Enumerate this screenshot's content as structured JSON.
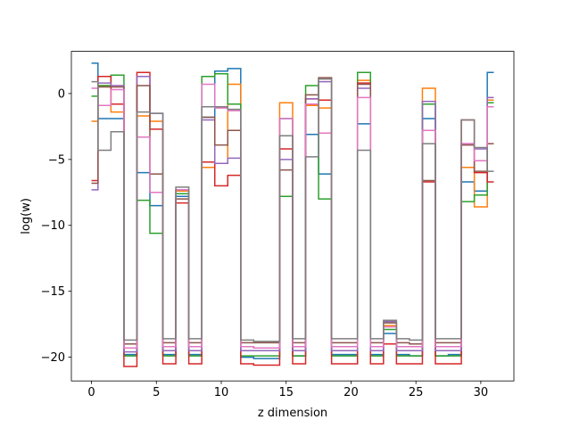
{
  "chart_data": {
    "type": "line",
    "drawstyle": "steps-mid",
    "title": "",
    "xlabel": "z dimension",
    "ylabel": "log(w)",
    "xlim": [
      -1.55,
      32.55
    ],
    "ylim": [
      -21.8,
      3.2
    ],
    "xticks": [
      0,
      5,
      10,
      15,
      20,
      25,
      30
    ],
    "yticks": [
      0,
      -5,
      -10,
      -15,
      -20
    ],
    "grid": false,
    "legend": "none",
    "x": [
      0,
      1,
      2,
      3,
      4,
      5,
      6,
      7,
      8,
      9,
      10,
      11,
      12,
      13,
      14,
      15,
      16,
      17,
      18,
      19,
      20,
      21,
      22,
      23,
      24,
      25,
      26,
      27,
      28,
      29,
      30,
      31
    ],
    "series": [
      {
        "color": "#1f77b4",
        "values": [
          2.3,
          -1.9,
          -1.9,
          -19.8,
          -6.0,
          -8.5,
          -19.8,
          -7.8,
          -19.8,
          -1.8,
          1.7,
          1.9,
          -20.0,
          -20.1,
          -20.1,
          -1.9,
          -19.9,
          -3.1,
          -6.1,
          -19.8,
          -19.8,
          -2.3,
          -19.8,
          -18.2,
          -19.8,
          -19.9,
          -1.9,
          -19.9,
          -19.8,
          -6.7,
          -7.4,
          1.6
        ]
      },
      {
        "color": "#ff7f0e",
        "values": [
          -2.1,
          0.6,
          -1.4,
          -19.3,
          -1.7,
          -2.1,
          -19.2,
          -7.4,
          -19.2,
          -5.6,
          -5.3,
          0.7,
          -19.2,
          -19.3,
          -19.3,
          -0.7,
          -19.2,
          -0.9,
          -1.1,
          -19.2,
          -19.2,
          1.0,
          -19.2,
          -17.6,
          -19.2,
          -19.2,
          0.4,
          -19.2,
          -19.2,
          -5.6,
          -8.6,
          -0.5
        ]
      },
      {
        "color": "#2ca02c",
        "values": [
          -0.2,
          0.6,
          1.4,
          -19.9,
          -8.1,
          -10.6,
          -19.9,
          -7.6,
          -19.9,
          1.3,
          1.5,
          -0.8,
          -19.9,
          -19.9,
          -19.9,
          -7.8,
          -19.9,
          0.6,
          -8.0,
          -19.9,
          -19.9,
          1.6,
          -19.9,
          -17.9,
          -19.9,
          -19.9,
          -0.8,
          -19.9,
          -19.9,
          -8.2,
          -7.7,
          -0.7
        ]
      },
      {
        "color": "#d62728",
        "values": [
          -6.6,
          1.3,
          -0.8,
          -20.7,
          1.6,
          -2.7,
          -20.5,
          -8.3,
          -20.5,
          -5.2,
          -7.0,
          -6.2,
          -20.5,
          -20.6,
          -20.6,
          -4.2,
          -20.5,
          -0.4,
          -0.5,
          -20.5,
          -20.5,
          0.8,
          -20.5,
          -19.0,
          -20.5,
          -20.5,
          -6.7,
          -20.5,
          -20.5,
          -2.0,
          -6.0,
          -6.7
        ]
      },
      {
        "color": "#9467bd",
        "values": [
          -7.3,
          0.8,
          0.6,
          -19.6,
          1.3,
          -1.5,
          -19.5,
          -7.3,
          -19.5,
          -2.0,
          -5.3,
          -4.9,
          -19.5,
          -19.5,
          -19.5,
          -5.0,
          -19.5,
          -0.4,
          0.9,
          -19.5,
          -19.5,
          0.4,
          -19.5,
          -17.3,
          -19.5,
          -19.5,
          -0.6,
          -19.5,
          -19.5,
          -3.8,
          -4.2,
          -0.3
        ]
      },
      {
        "color": "#8c564b",
        "values": [
          -6.8,
          0.5,
          0.5,
          -19.0,
          0.6,
          -6.1,
          -18.9,
          -8.0,
          -18.9,
          -1.8,
          -3.9,
          -2.8,
          -18.9,
          -18.9,
          -18.9,
          -5.8,
          -18.9,
          -0.1,
          1.2,
          -18.9,
          -18.9,
          0.7,
          -18.9,
          -17.4,
          -18.9,
          -19.0,
          -6.6,
          -18.9,
          -18.9,
          -3.9,
          -5.9,
          -3.8
        ]
      },
      {
        "color": "#e377c2",
        "values": [
          0.4,
          -0.9,
          0.3,
          -19.3,
          -3.3,
          -7.5,
          -19.2,
          -7.3,
          -19.2,
          0.7,
          -1.1,
          -1.3,
          -19.2,
          -19.3,
          -19.3,
          -1.9,
          -19.2,
          -0.8,
          -3.0,
          -19.2,
          -19.2,
          -0.3,
          -19.2,
          -17.7,
          -19.2,
          -19.2,
          -2.8,
          -19.2,
          -19.2,
          -3.8,
          -5.1,
          -1.0
        ]
      },
      {
        "color": "#7f7f7f",
        "values": [
          0.9,
          -4.3,
          -2.9,
          -18.7,
          -1.4,
          -1.5,
          -18.6,
          -7.1,
          -18.6,
          -1.0,
          -1.0,
          -1.2,
          -18.7,
          -18.8,
          -18.8,
          -3.2,
          -18.6,
          -4.8,
          1.1,
          -18.6,
          -18.6,
          -4.3,
          -18.6,
          -17.2,
          -18.6,
          -18.7,
          -3.8,
          -18.6,
          -18.6,
          -2.0,
          -4.1,
          -5.9
        ]
      }
    ]
  }
}
